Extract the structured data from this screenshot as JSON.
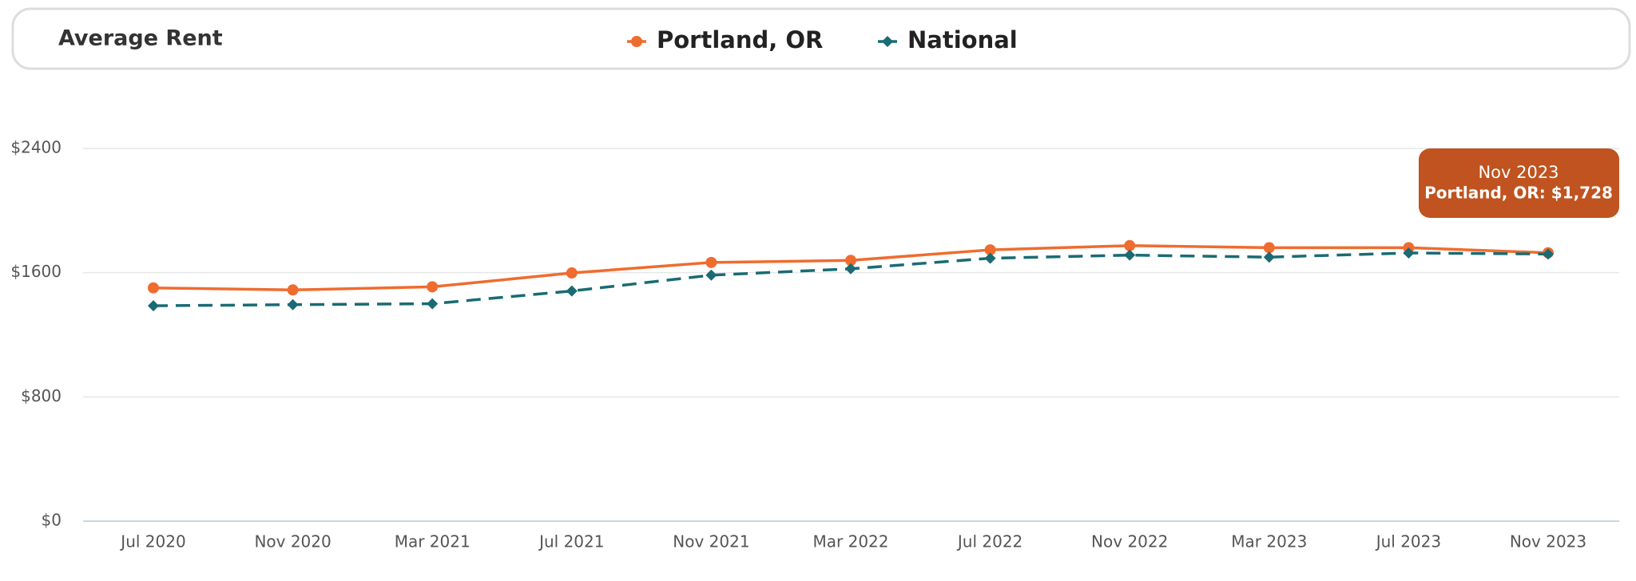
{
  "chart_data": {
    "type": "line",
    "title": "Average Rent",
    "categories": [
      "Jul 2020",
      "Nov 2020",
      "Mar 2021",
      "Jul 2021",
      "Nov 2021",
      "Mar 2022",
      "Jul 2022",
      "Nov 2022",
      "Mar 2023",
      "Jul 2023",
      "Nov 2023"
    ],
    "series": [
      {
        "name": "Portland, OR",
        "color": "#ef6c2f",
        "marker": "circle",
        "dashed": false,
        "values": [
          1502,
          1489,
          1509,
          1598,
          1666,
          1679,
          1747,
          1774,
          1761,
          1761,
          1728
        ]
      },
      {
        "name": "National",
        "color": "#1a6b73",
        "marker": "diamond",
        "dashed": true,
        "values": [
          1387,
          1394,
          1400,
          1482,
          1584,
          1625,
          1693,
          1713,
          1700,
          1727,
          1720
        ]
      }
    ],
    "ylim": [
      0,
      2400
    ],
    "yticks": [
      {
        "value": 0,
        "label": "$0"
      },
      {
        "value": 800,
        "label": "$800"
      },
      {
        "value": 1600,
        "label": "$1600"
      },
      {
        "value": 2400,
        "label": "$2400"
      }
    ],
    "grid": true,
    "tooltip": {
      "title": "Nov 2023",
      "text": "Portland, OR: $1,728"
    }
  }
}
